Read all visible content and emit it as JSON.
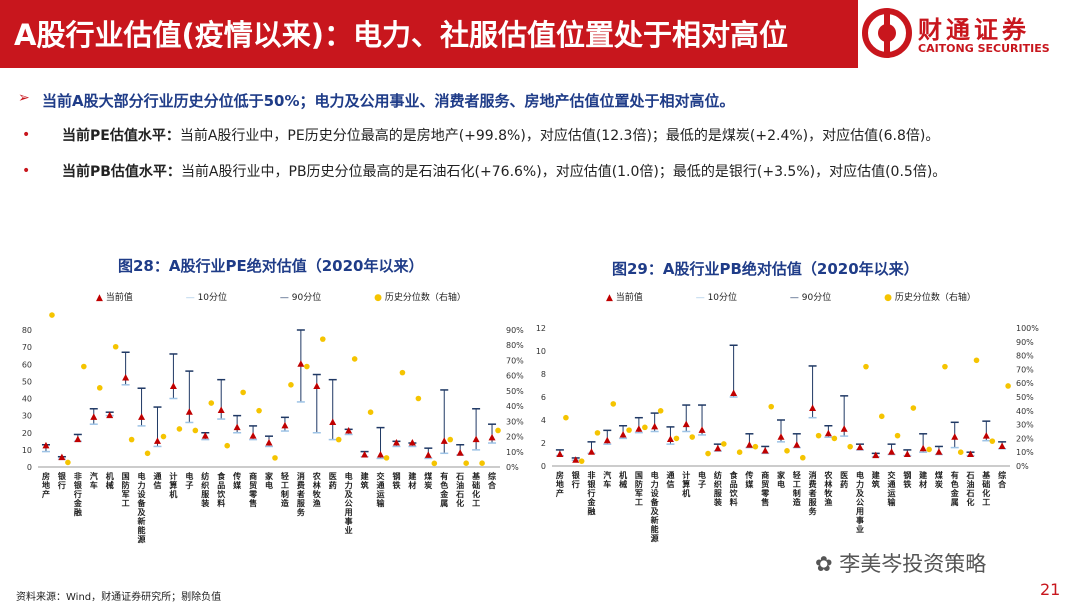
{
  "header": {
    "title": "A股行业估值(疫情以来)：电力、社服估值位置处于相对高位",
    "brand_cn": "财通证券",
    "brand_en": "CAITONG SECURITIES"
  },
  "summary": "当前A股大部分行业历史分位低于50%；电力及公用事业、消费者服务、房地产估值位置处于相对高位。",
  "bullets": [
    {
      "label": "当前PE估值水平：",
      "text": "当前A股行业中，PE历史分位最高的是房地产(+99.8%)，对应估值(12.3倍)；最低的是煤炭(+2.4%)，对应估值(6.8倍)。"
    },
    {
      "label": "当前PB估值水平：",
      "text": "当前A股行业中，PB历史分位最高的是石油石化(+76.6%)，对应估值(1.0倍)；最低的是银行(+3.5%)，对应估值(0.5倍)。"
    }
  ],
  "legend": {
    "current": "当前值",
    "p10": "10分位",
    "p90": "90分位",
    "pct": "历史分位数（右轴）"
  },
  "colors": {
    "brand": "#c8161d",
    "navy": "#1f3c88",
    "current": "#c00000",
    "dot": "#f5c400",
    "bar": "#1f3864"
  },
  "source": "资料来源：Wind，财通证券研究所；剔除负值",
  "watermark": "李美岑投资策略",
  "page_number": "21",
  "chart_data": [
    {
      "type": "scatter",
      "title": "图28：A股行业PE绝对估值（2020年以来）",
      "categories": [
        "房地产",
        "银行",
        "非银行金融",
        "汽车",
        "机械",
        "国防军工",
        "电力设备及新能源",
        "通信",
        "计算机",
        "电子",
        "纺织服装",
        "食品饮料",
        "传媒",
        "商贸零售",
        "家电",
        "轻工制造",
        "消费者服务",
        "农林牧渔",
        "医药",
        "电力及公用事业",
        "建筑",
        "交通运输",
        "钢铁",
        "建材",
        "煤炭",
        "有色金属",
        "石油石化",
        "基础化工",
        "综合"
      ],
      "current": [
        12.3,
        5.5,
        16,
        29,
        30,
        52,
        29,
        15,
        47,
        32,
        18,
        33,
        23,
        18,
        14,
        24,
        60,
        47,
        26,
        21,
        7,
        7,
        14,
        14,
        6.8,
        15,
        8,
        16,
        17
      ],
      "p10": [
        9,
        4.5,
        15,
        25,
        30,
        48,
        24,
        12,
        40,
        26,
        16,
        28,
        20,
        16,
        12,
        21,
        38,
        20,
        16,
        19,
        6,
        5,
        12,
        12,
        5,
        8,
        7,
        10,
        14
      ],
      "p90": [
        13,
        6,
        19,
        34,
        32,
        67,
        46,
        35,
        66,
        56,
        20,
        51,
        30,
        24,
        18,
        29,
        80,
        54,
        51,
        22,
        9,
        23,
        15,
        14,
        11,
        45,
        13,
        34,
        25
      ],
      "percentile": [
        99.8,
        3.0,
        66,
        52,
        79,
        18,
        9,
        20,
        25,
        24,
        42,
        14,
        49,
        37,
        6,
        54,
        66,
        84,
        18,
        71,
        36,
        6,
        62,
        45,
        2.4,
        18,
        2.5,
        2.5,
        24
      ],
      "ylim_left": [
        0,
        80
      ],
      "yticks_left": [
        0,
        10,
        20,
        30,
        40,
        50,
        60,
        70,
        80
      ],
      "ylim_right": [
        0,
        90
      ],
      "yticks_right": [
        "0%",
        "10%",
        "20%",
        "30%",
        "40%",
        "50%",
        "60%",
        "70%",
        "80%",
        "90%"
      ]
    },
    {
      "type": "scatter",
      "title": "图29：A股行业PB绝对估值（2020年以来）",
      "categories": [
        "房地产",
        "银行",
        "非银行金融",
        "汽车",
        "机械",
        "国防军工",
        "电力设备及新能源",
        "通信",
        "计算机",
        "电子",
        "纺织服装",
        "食品饮料",
        "传媒",
        "商贸零售",
        "家电",
        "轻工制造",
        "消费者服务",
        "农林牧渔",
        "医药",
        "电力及公用事业",
        "建筑",
        "交通运输",
        "钢铁",
        "建材",
        "煤炭",
        "有色金属",
        "石油石化",
        "基础化工",
        "综合"
      ],
      "current": [
        1.0,
        0.5,
        1.2,
        2.2,
        2.7,
        3.2,
        3.4,
        2.3,
        3.6,
        3.1,
        1.5,
        6.3,
        1.8,
        1.3,
        2.5,
        1.8,
        5.0,
        2.8,
        3.2,
        1.6,
        0.9,
        1.2,
        1.0,
        1.5,
        1.2,
        2.5,
        1.0,
        2.6,
        1.7
      ],
      "p10": [
        0.9,
        0.5,
        1.1,
        1.9,
        2.4,
        2.9,
        3.0,
        1.9,
        3.0,
        2.7,
        1.3,
        6.0,
        1.6,
        1.1,
        2.1,
        1.6,
        4.2,
        2.5,
        2.6,
        1.4,
        0.8,
        1.0,
        0.9,
        1.2,
        1.0,
        1.6,
        0.9,
        2.2,
        1.5
      ],
      "p90": [
        1.4,
        0.7,
        2.1,
        3.1,
        3.5,
        4.2,
        4.6,
        3.4,
        5.3,
        5.3,
        1.9,
        10.5,
        2.8,
        1.7,
        4.0,
        2.8,
        8.7,
        3.5,
        6.1,
        1.9,
        1.1,
        1.9,
        1.4,
        2.8,
        1.7,
        3.8,
        1.2,
        3.9,
        2.1
      ],
      "percentile": [
        35,
        3.5,
        24,
        45,
        26,
        28,
        40,
        20,
        21,
        9,
        16,
        10,
        14,
        43,
        11,
        6,
        22,
        20,
        14,
        72,
        36,
        22,
        42,
        12,
        72,
        10,
        76.6,
        18,
        58
      ],
      "ylim_left": [
        0,
        12
      ],
      "yticks_left": [
        0,
        2,
        4,
        6,
        8,
        10,
        12
      ],
      "ylim_right": [
        0,
        100
      ],
      "yticks_right": [
        "0%",
        "10%",
        "20%",
        "30%",
        "40%",
        "50%",
        "60%",
        "70%",
        "80%",
        "90%",
        "100%"
      ]
    }
  ]
}
